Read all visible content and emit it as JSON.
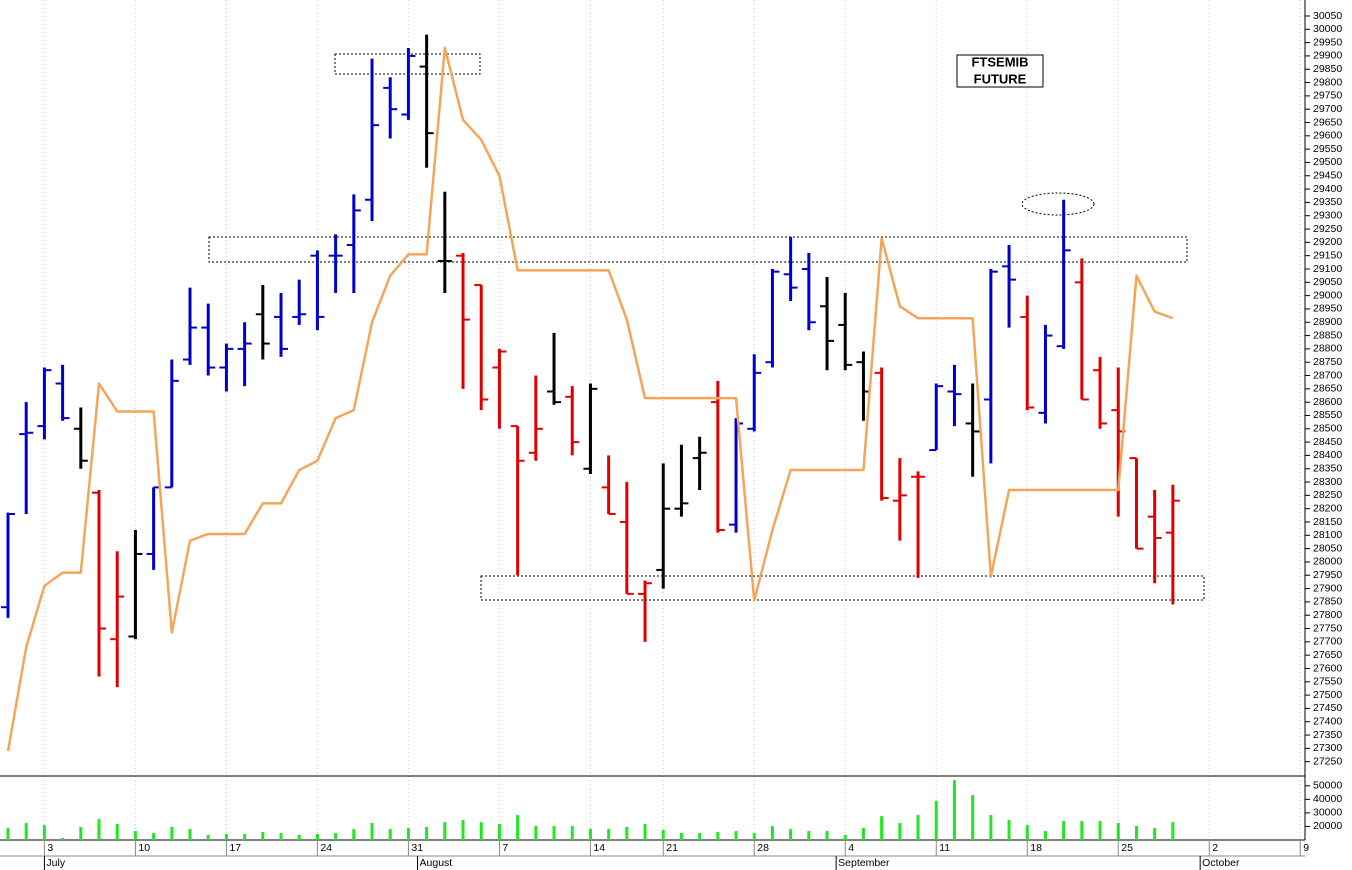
{
  "chart_data": [
    {
      "type": "ohlc",
      "title_lines": [
        "FTSEMIB",
        "FUTURE"
      ],
      "open": [
        27830,
        28480,
        28510,
        28670,
        28500,
        28260,
        27710,
        27720,
        28030,
        28280,
        28760,
        28880,
        28730,
        28800,
        28930,
        28920,
        28920,
        29150,
        29150,
        29190,
        29360,
        29780,
        29680,
        29860,
        29130,
        29150,
        29040,
        28730,
        28510,
        28410,
        28640,
        28620,
        28350,
        28280,
        28150,
        27880,
        27970,
        28200,
        28390,
        28600,
        28140,
        28500,
        28750,
        29080,
        29100,
        28960,
        28890,
        28750,
        28710,
        28230,
        28320,
        28420,
        28640,
        28520,
        28610,
        29110,
        28920,
        28560,
        28810,
        29050,
        28720,
        28570,
        28390,
        28170,
        28110
      ],
      "high": [
        28185,
        28600,
        28730,
        28740,
        28580,
        28270,
        28040,
        28120,
        28280,
        28760,
        29030,
        28970,
        28820,
        28900,
        29040,
        29010,
        29060,
        29170,
        29230,
        29380,
        29890,
        29820,
        29930,
        29980,
        29390,
        29160,
        29040,
        28800,
        28510,
        28700,
        28860,
        28660,
        28670,
        28400,
        28300,
        27930,
        28370,
        28440,
        28470,
        28680,
        28540,
        28780,
        29100,
        29220,
        29160,
        29070,
        29010,
        28790,
        28730,
        28390,
        28340,
        28670,
        28740,
        28670,
        29100,
        29190,
        29000,
        28890,
        29360,
        29140,
        28770,
        28730,
        28390,
        28270,
        28290
      ],
      "low": [
        27790,
        28180,
        28460,
        28530,
        28350,
        27570,
        27530,
        27710,
        27970,
        28280,
        28740,
        28700,
        28640,
        28660,
        28760,
        28770,
        28890,
        28870,
        29010,
        29010,
        29280,
        29590,
        29660,
        29480,
        29010,
        28650,
        28570,
        28500,
        27950,
        28380,
        28590,
        28400,
        28330,
        28180,
        27880,
        27700,
        27900,
        28170,
        28270,
        28110,
        28110,
        28490,
        28730,
        28980,
        28870,
        28720,
        28720,
        28530,
        28230,
        28080,
        27940,
        28420,
        28510,
        28320,
        28370,
        28880,
        28570,
        28520,
        28800,
        28610,
        28500,
        28170,
        28050,
        27920,
        27840
      ],
      "close": [
        28180,
        28485,
        28720,
        28540,
        28380,
        27750,
        27870,
        28030,
        28280,
        28680,
        28880,
        28730,
        28800,
        28820,
        28820,
        28800,
        28930,
        28920,
        29150,
        29320,
        29640,
        29700,
        29900,
        29610,
        29130,
        28910,
        28610,
        28790,
        28380,
        28500,
        28600,
        28450,
        28650,
        28180,
        27880,
        27920,
        28200,
        28220,
        28410,
        28120,
        28520,
        28710,
        29090,
        29030,
        28900,
        28830,
        28740,
        28640,
        28240,
        28250,
        28320,
        28660,
        28630,
        28490,
        29090,
        29060,
        28580,
        28850,
        29170,
        28610,
        28520,
        28490,
        28050,
        28090,
        28230
      ],
      "colors": [
        "#0000cc",
        "#0000cc",
        "#0000cc",
        "#0000cc",
        "#000000",
        "#e00000",
        "#e00000",
        "#000000",
        "#0000cc",
        "#0000cc",
        "#0000cc",
        "#0000cc",
        "#0000cc",
        "#0000cc",
        "#000000",
        "#0000cc",
        "#0000cc",
        "#0000cc",
        "#0000cc",
        "#0000cc",
        "#0000cc",
        "#0000cc",
        "#0000cc",
        "#000000",
        "#000000",
        "#e00000",
        "#e00000",
        "#e00000",
        "#e00000",
        "#e00000",
        "#000000",
        "#e00000",
        "#000000",
        "#e00000",
        "#e00000",
        "#e00000",
        "#000000",
        "#000000",
        "#000000",
        "#e00000",
        "#0000cc",
        "#0000cc",
        "#0000cc",
        "#0000cc",
        "#0000cc",
        "#000000",
        "#000000",
        "#000000",
        "#e00000",
        "#e00000",
        "#e00000",
        "#0000cc",
        "#0000cc",
        "#000000",
        "#0000cc",
        "#0000cc",
        "#e00000",
        "#0000cc",
        "#0000cc",
        "#e00000",
        "#e00000",
        "#e00000",
        "#e00000",
        "#e00000",
        "#e00000"
      ],
      "line": {
        "color": "#f5a55a",
        "values": [
          27290,
          27680,
          27910,
          27960,
          27960,
          28670,
          28565,
          28565,
          28565,
          27735,
          28080,
          28105,
          28105,
          28105,
          28220,
          28220,
          28345,
          28380,
          28540,
          28570,
          28900,
          29075,
          29155,
          29155,
          29930,
          29660,
          29585,
          29450,
          29095,
          29095,
          29095,
          29095,
          29095,
          29095,
          28910,
          28615,
          28615,
          28615,
          28615,
          28615,
          28615,
          27855,
          28120,
          28345,
          28345,
          28345,
          28345,
          28345,
          29215,
          28960,
          28915,
          28915,
          28915,
          28915,
          27945,
          28270,
          28270,
          28270,
          28270,
          28270,
          28270,
          28270,
          29075,
          28940,
          28915
        ]
      },
      "xlim": [
        -0.44,
        71.26
      ],
      "xticks": [
        {
          "value": 2,
          "label": "3"
        },
        {
          "value": 7,
          "label": "10"
        },
        {
          "value": 12,
          "label": "17"
        },
        {
          "value": 17,
          "label": "24"
        },
        {
          "value": 22,
          "label": "31"
        },
        {
          "value": 27,
          "label": "7"
        },
        {
          "value": 32,
          "label": "14"
        },
        {
          "value": 36,
          "label": "21"
        },
        {
          "value": 41,
          "label": "28"
        },
        {
          "value": 46,
          "label": "4"
        },
        {
          "value": 51,
          "label": "11"
        },
        {
          "value": 56,
          "label": "18"
        },
        {
          "value": 61,
          "label": "25"
        },
        {
          "value": 66,
          "label": "2"
        },
        {
          "value": 71,
          "label": "9"
        }
      ],
      "month_ticks": [
        {
          "value": 2,
          "label": "July"
        },
        {
          "value": 22.5,
          "label": "August"
        },
        {
          "value": 45.5,
          "label": "September"
        },
        {
          "value": 65.5,
          "label": "October"
        }
      ],
      "ylim": [
        27200,
        30110
      ],
      "yticks": [
        27250,
        27300,
        27350,
        27400,
        27450,
        27500,
        27550,
        27600,
        27650,
        27700,
        27750,
        27800,
        27850,
        27900,
        27950,
        28000,
        28050,
        28100,
        28150,
        28200,
        28250,
        28300,
        28350,
        28400,
        28450,
        28500,
        28550,
        28600,
        28650,
        28700,
        28750,
        28800,
        28850,
        28900,
        28950,
        29000,
        29050,
        29100,
        29150,
        29200,
        29250,
        29300,
        29350,
        29400,
        29450,
        29500,
        29550,
        29600,
        29650,
        29700,
        29750,
        29800,
        29850,
        29900,
        29950,
        30000,
        30050
      ],
      "grid": true
    },
    {
      "type": "bar",
      "color": "#22e622",
      "values": [
        18800,
        22500,
        21000,
        11500,
        19600,
        25400,
        21800,
        16600,
        15100,
        19600,
        18100,
        13700,
        14400,
        14400,
        15900,
        15100,
        13700,
        14400,
        15100,
        18100,
        22500,
        18100,
        18800,
        19600,
        23200,
        24700,
        23200,
        21800,
        28400,
        20300,
        20300,
        20300,
        18100,
        18100,
        19600,
        21800,
        17400,
        15100,
        15100,
        15900,
        16600,
        15100,
        20300,
        18100,
        16600,
        16600,
        13700,
        18800,
        27600,
        22500,
        28400,
        38700,
        54100,
        43100,
        28400,
        24700,
        21000,
        16600,
        24000,
        24000,
        24000,
        22500,
        20300,
        18800,
        23200
      ],
      "ylim": [
        10000,
        55000
      ],
      "yticks": [
        20000,
        30000,
        40000,
        50000
      ]
    }
  ]
}
